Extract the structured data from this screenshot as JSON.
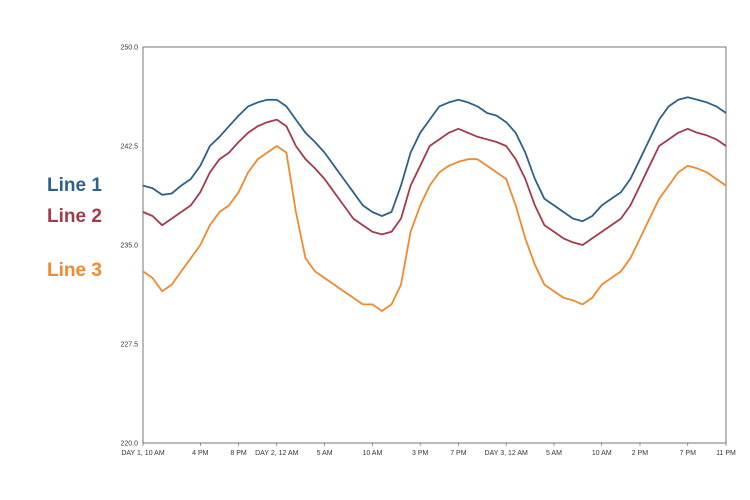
{
  "chart_data": {
    "type": "line",
    "title": "",
    "xlabel": "",
    "ylabel": "",
    "ylim": [
      220.0,
      250.0
    ],
    "y_ticks": [
      "250.0",
      "242.5",
      "235.0",
      "227.5",
      "220.0"
    ],
    "x_tick_labels": [
      "DAY 1, 10 AM",
      "4 PM",
      "8 PM",
      "DAY 2, 12 AM",
      "5 AM",
      "10 AM",
      "3 PM",
      "7 PM",
      "DAY 3, 12 AM",
      "5 AM",
      "10 AM",
      "2 PM",
      "7 PM",
      "11 PM"
    ],
    "x_tick_positions": [
      0,
      6,
      10,
      14,
      19,
      24,
      29,
      33,
      38,
      43,
      48,
      52,
      57,
      61
    ],
    "x_range": [
      0,
      61
    ],
    "grid": false,
    "legend": "left",
    "series": [
      {
        "name": "Line 1",
        "color": "#2d6189",
        "values": [
          239.5,
          239.3,
          238.8,
          238.9,
          239.5,
          240.0,
          241.0,
          242.5,
          243.2,
          244.0,
          244.8,
          245.5,
          245.8,
          246.0,
          246.0,
          245.5,
          244.5,
          243.5,
          242.8,
          242.0,
          241.0,
          240.0,
          239.0,
          238.0,
          237.5,
          237.2,
          237.5,
          239.5,
          242.0,
          243.5,
          244.5,
          245.5,
          245.8,
          246.0,
          245.8,
          245.5,
          245.0,
          244.8,
          244.3,
          243.5,
          242.0,
          240.0,
          238.5,
          238.0,
          237.5,
          237.0,
          236.8,
          237.2,
          238.0,
          238.5,
          239.0,
          240.0,
          241.5,
          243.0,
          244.5,
          245.5,
          246.0,
          246.2,
          246.0,
          245.8,
          245.5,
          245.0
        ]
      },
      {
        "name": "Line 2",
        "color": "#a43b4c",
        "values": [
          237.5,
          237.2,
          236.5,
          237.0,
          237.5,
          238.0,
          239.0,
          240.5,
          241.5,
          242.0,
          242.8,
          243.5,
          244.0,
          244.3,
          244.5,
          244.0,
          242.5,
          241.5,
          240.8,
          240.0,
          239.0,
          238.0,
          237.0,
          236.5,
          236.0,
          235.8,
          236.0,
          237.0,
          239.5,
          241.0,
          242.5,
          243.0,
          243.5,
          243.8,
          243.5,
          243.2,
          243.0,
          242.8,
          242.5,
          241.5,
          240.0,
          238.0,
          236.5,
          236.0,
          235.5,
          235.2,
          235.0,
          235.5,
          236.0,
          236.5,
          237.0,
          238.0,
          239.5,
          241.0,
          242.5,
          243.0,
          243.5,
          243.8,
          243.5,
          243.3,
          243.0,
          242.5
        ]
      },
      {
        "name": "Line 3",
        "color": "#f08a2c",
        "values": [
          233.0,
          232.5,
          231.5,
          232.0,
          233.0,
          234.0,
          235.0,
          236.5,
          237.5,
          238.0,
          239.0,
          240.5,
          241.5,
          242.0,
          242.5,
          242.0,
          237.5,
          234.0,
          233.0,
          232.5,
          232.0,
          231.5,
          231.0,
          230.5,
          230.5,
          230.0,
          230.5,
          232.0,
          236.0,
          238.0,
          239.5,
          240.5,
          241.0,
          241.3,
          241.5,
          241.5,
          241.0,
          240.5,
          240.0,
          238.0,
          235.5,
          233.5,
          232.0,
          231.5,
          231.0,
          230.8,
          230.5,
          231.0,
          232.0,
          232.5,
          233.0,
          234.0,
          235.5,
          237.0,
          238.5,
          239.5,
          240.5,
          241.0,
          240.8,
          240.5,
          240.0,
          239.5
        ]
      }
    ]
  }
}
